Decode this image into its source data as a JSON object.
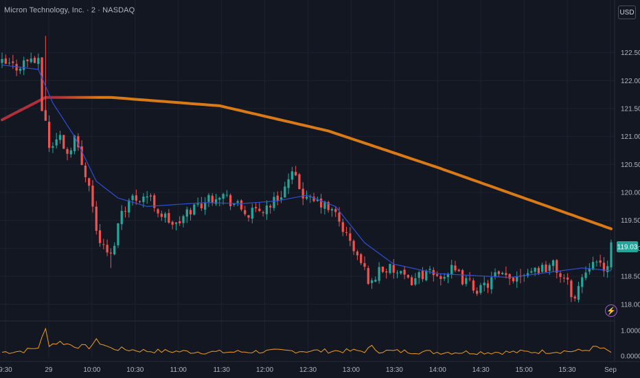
{
  "header": {
    "title": "Micron Technology, Inc. · 2 · NASDAQ",
    "currency_button": "USD"
  },
  "colors": {
    "background": "#131722",
    "grid": "#1e2230",
    "up": "#26a69a",
    "down": "#ef5350",
    "ema_slow": "#d97a16",
    "ema_slow_start": "#b0303a",
    "ema_fast": "#2d4fd6",
    "volume_line": "#f39c1a",
    "last_price_badge": "#26a69a",
    "text": "#b2b5be"
  },
  "chart_data": [
    {
      "type": "line",
      "subtype": "candlestick",
      "x_tick_labels": [
        "9:30",
        "29",
        "10:00",
        "10:30",
        "11:00",
        "11:30",
        "12:00",
        "12:30",
        "13:00",
        "13:30",
        "14:00",
        "14:30",
        "15:00",
        "15:30",
        "Sep"
      ],
      "y_tick_labels": [
        "122.50",
        "122.00",
        "121.50",
        "121.00",
        "120.50",
        "120.00",
        "119.50",
        "119.00",
        "118.50",
        "118.00"
      ],
      "ylim": [
        117.85,
        122.95
      ],
      "last_price": "119.03",
      "ohlc_keypoints": [
        [
          0,
          122.3
        ],
        [
          4,
          122.25
        ],
        [
          8,
          122.4
        ],
        [
          10,
          122.3
        ],
        [
          11,
          121.5
        ],
        [
          12,
          121.3
        ],
        [
          13,
          120.8
        ],
        [
          16,
          121.0
        ],
        [
          18,
          120.7
        ],
        [
          20,
          121.0
        ],
        [
          22,
          120.5
        ],
        [
          24,
          120.2
        ],
        [
          26,
          119.3
        ],
        [
          28,
          119.0
        ],
        [
          30,
          118.85
        ],
        [
          33,
          119.7
        ],
        [
          36,
          119.9
        ],
        [
          40,
          119.95
        ],
        [
          44,
          119.6
        ],
        [
          48,
          119.4
        ],
        [
          52,
          119.7
        ],
        [
          56,
          119.85
        ],
        [
          60,
          120.0
        ],
        [
          64,
          119.8
        ],
        [
          68,
          119.6
        ],
        [
          72,
          119.7
        ],
        [
          76,
          119.9
        ],
        [
          80,
          120.3
        ],
        [
          82,
          120.1
        ],
        [
          84,
          119.85
        ],
        [
          88,
          119.8
        ],
        [
          92,
          119.6
        ],
        [
          96,
          119.1
        ],
        [
          100,
          118.6
        ],
        [
          102,
          118.35
        ],
        [
          104,
          118.65
        ],
        [
          108,
          118.6
        ],
        [
          112,
          118.4
        ],
        [
          116,
          118.55
        ],
        [
          120,
          118.5
        ],
        [
          124,
          118.6
        ],
        [
          128,
          118.4
        ],
        [
          132,
          118.25
        ],
        [
          136,
          118.5
        ],
        [
          140,
          118.45
        ],
        [
          144,
          118.6
        ],
        [
          148,
          118.65
        ],
        [
          152,
          118.7
        ],
        [
          156,
          118.35
        ],
        [
          158,
          118.1
        ],
        [
          160,
          118.5
        ],
        [
          163,
          118.85
        ],
        [
          166,
          118.55
        ],
        [
          168,
          119.03
        ]
      ],
      "series": [
        {
          "values": [
            [
              0,
              121.3
            ],
            [
              12,
              121.7
            ],
            [
              30,
              121.7
            ],
            [
              60,
              121.55
            ],
            [
              90,
              121.1
            ],
            [
              120,
              120.45
            ],
            [
              168,
              119.35
            ]
          ]
        },
        {
          "values": [
            [
              0,
              122.28
            ],
            [
              10,
              122.2
            ],
            [
              14,
              121.6
            ],
            [
              20,
              121.0
            ],
            [
              26,
              120.2
            ],
            [
              32,
              119.9
            ],
            [
              40,
              119.75
            ],
            [
              56,
              119.82
            ],
            [
              66,
              119.8
            ],
            [
              76,
              119.85
            ],
            [
              84,
              119.95
            ],
            [
              92,
              119.75
            ],
            [
              100,
              119.1
            ],
            [
              108,
              118.72
            ],
            [
              120,
              118.55
            ],
            [
              140,
              118.48
            ],
            [
              160,
              118.65
            ],
            [
              168,
              118.6
            ]
          ]
        }
      ]
    },
    {
      "type": "line",
      "y_tick_labels": [
        "1.0000",
        "0.0000"
      ],
      "ylim": [
        0,
        1.3
      ],
      "series": [
        {
          "values": [
            [
              0,
              0.15
            ],
            [
              6,
              0.2
            ],
            [
              10,
              0.35
            ],
            [
              12,
              1.05
            ],
            [
              13,
              0.45
            ],
            [
              16,
              0.55
            ],
            [
              20,
              0.4
            ],
            [
              24,
              0.35
            ],
            [
              26,
              0.6
            ],
            [
              30,
              0.3
            ],
            [
              40,
              0.2
            ],
            [
              60,
              0.15
            ],
            [
              80,
              0.2
            ],
            [
              100,
              0.2
            ],
            [
              102,
              0.35
            ],
            [
              104,
              0.2
            ],
            [
              120,
              0.15
            ],
            [
              140,
              0.15
            ],
            [
              160,
              0.2
            ],
            [
              164,
              0.35
            ],
            [
              168,
              0.15
            ]
          ]
        }
      ]
    }
  ]
}
